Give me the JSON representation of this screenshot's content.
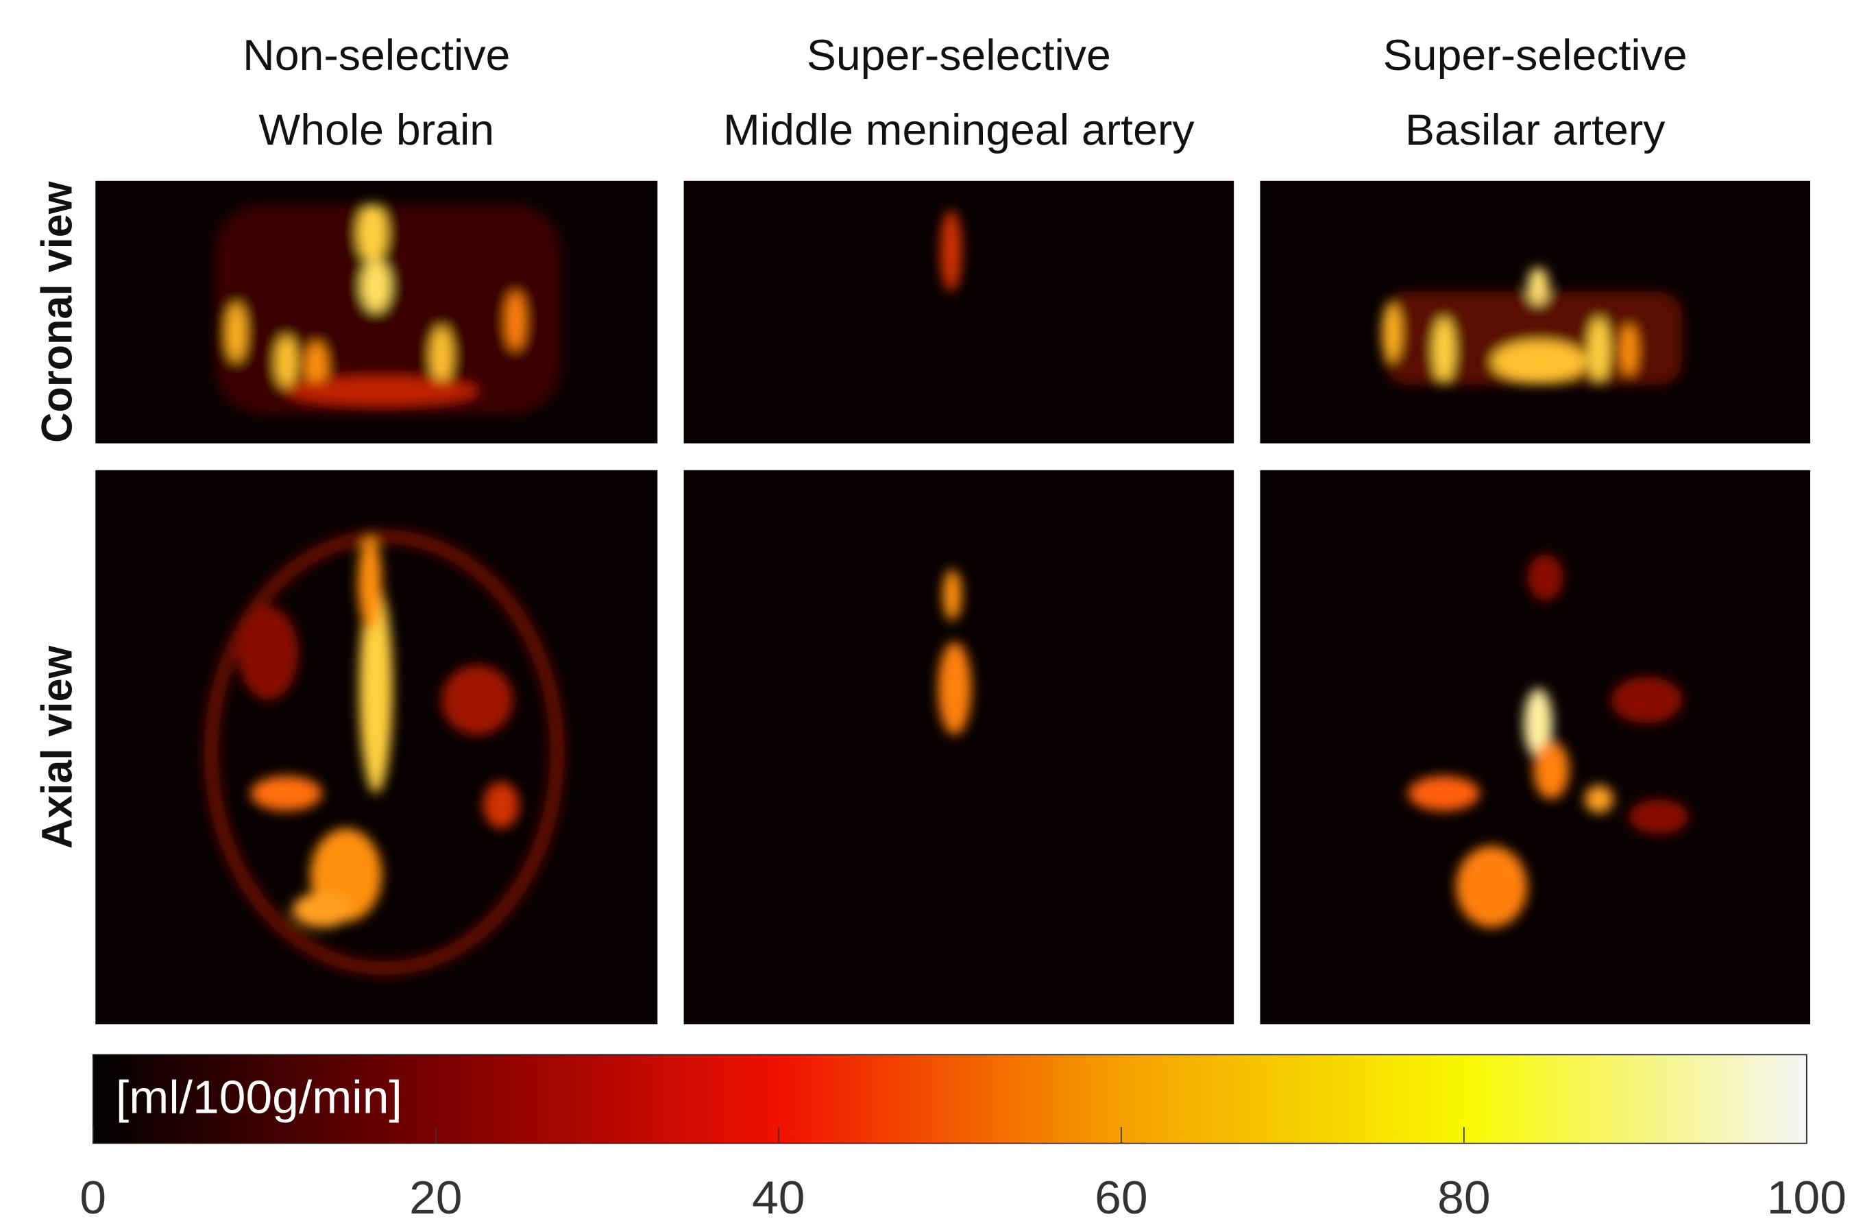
{
  "chart_data": {
    "type": "colormap-grid",
    "columns": [
      {
        "title": "Non-selective",
        "subtitle": "Whole brain"
      },
      {
        "title": "Super-selective",
        "subtitle": "Middle meningeal artery"
      },
      {
        "title": "Super-selective",
        "subtitle": "Basilar artery"
      }
    ],
    "rows": [
      "Coronal view",
      "Axial view"
    ],
    "colorbar": {
      "label": "[ml/100g/min]",
      "lim": [
        0,
        100
      ],
      "ticks": [
        0,
        20,
        40,
        60,
        80,
        100
      ],
      "colors": [
        "#000000",
        "#7a0000",
        "#f01000",
        "#f5a000",
        "#f8f800",
        "#f5f5f5"
      ]
    }
  }
}
